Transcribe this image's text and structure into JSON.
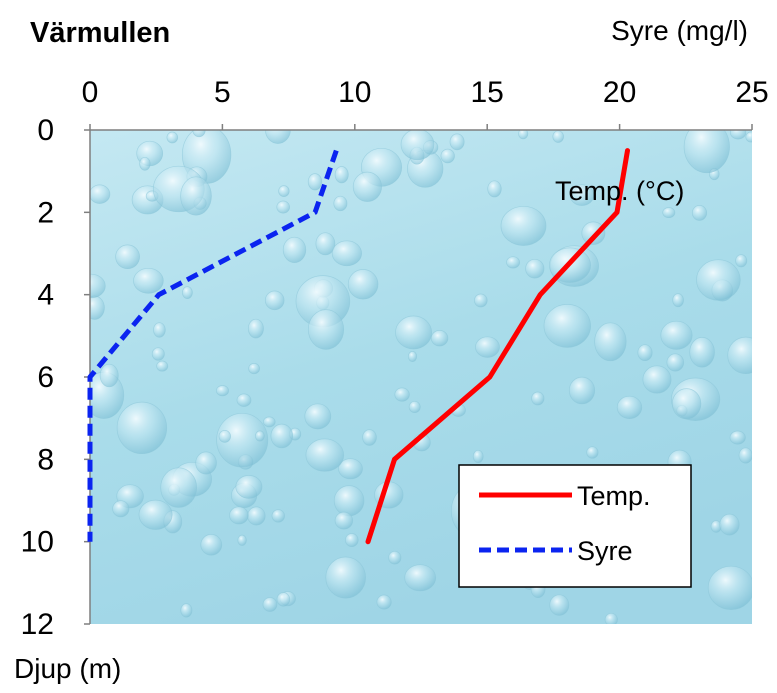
{
  "chart_data": {
    "type": "line",
    "title": "Värmullen",
    "x_axis_title": "Syre (mg/l)",
    "y_axis_title": "Djup (m)",
    "annotation": "Temp. (°C)",
    "x_axis_position": "top",
    "y_reversed": true,
    "xlim": [
      0,
      25
    ],
    "ylim": [
      0,
      12
    ],
    "x_ticks": [
      "0",
      "5",
      "10",
      "15",
      "20",
      "25"
    ],
    "y_ticks": [
      "0",
      "2",
      "4",
      "6",
      "8",
      "10",
      "12"
    ],
    "grid": false,
    "background": "water-droplets",
    "legend_position": "bottom-right",
    "series": [
      {
        "name": "Temp.",
        "color": "#ff0000",
        "dash": "solid",
        "points": [
          [
            20.3,
            0.5
          ],
          [
            19.9,
            2
          ],
          [
            17.0,
            4
          ],
          [
            15.1,
            6
          ],
          [
            11.5,
            8
          ],
          [
            10.5,
            10
          ]
        ]
      },
      {
        "name": "Syre",
        "color": "#0b24f0",
        "dash": "dashed",
        "points": [
          [
            9.3,
            0.5
          ],
          [
            8.5,
            2
          ],
          [
            2.6,
            4
          ],
          [
            0,
            6
          ],
          [
            0,
            8
          ],
          [
            0,
            10
          ]
        ]
      }
    ]
  }
}
